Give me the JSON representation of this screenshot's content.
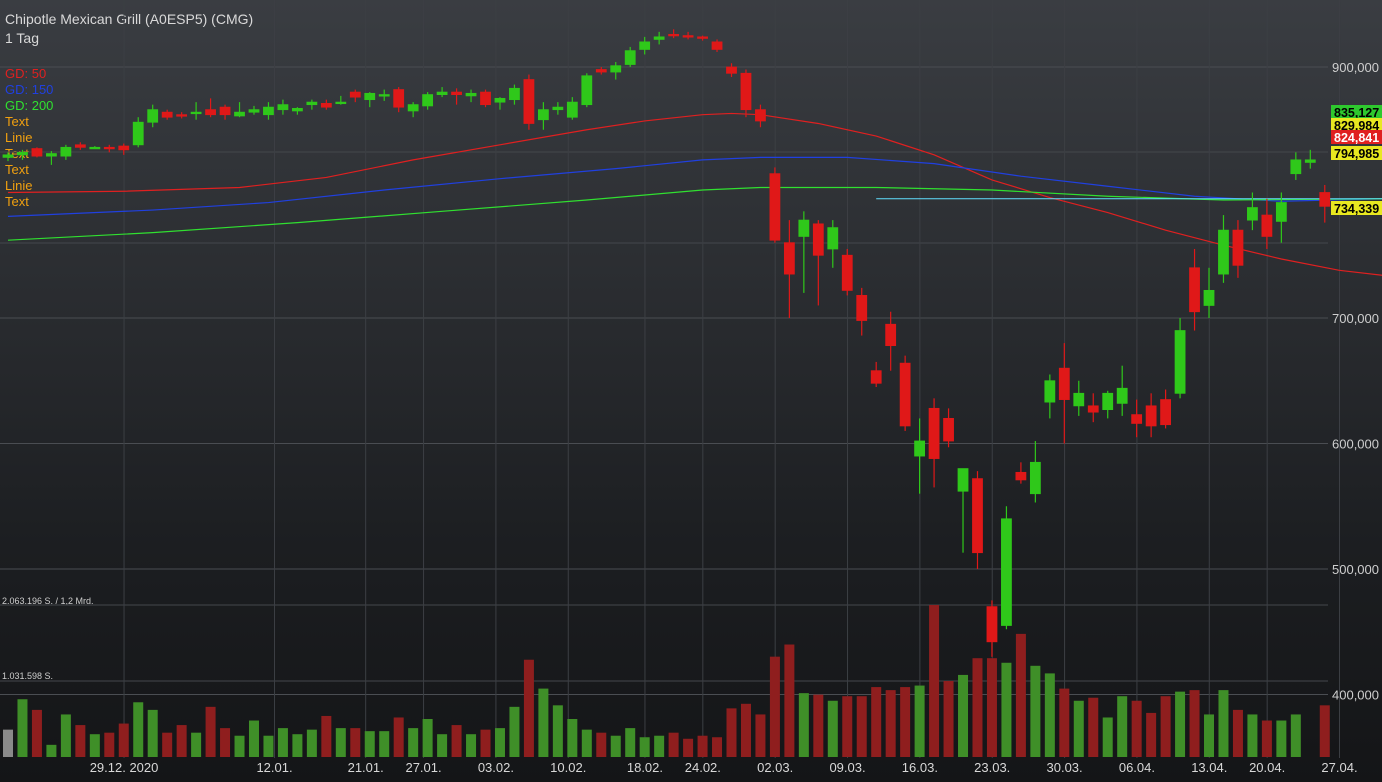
{
  "header": {
    "title": "Chipotle Mexican Grill (A0ESP5) (CMG)",
    "interval": "1 Tag"
  },
  "legend": [
    {
      "label": "GD: 50",
      "color": "#e02020"
    },
    {
      "label": "GD: 150",
      "color": "#2040e0"
    },
    {
      "label": "GD: 200",
      "color": "#30e030"
    },
    {
      "label": "Text",
      "color": "#f0a010"
    },
    {
      "label": "Linie",
      "color": "#f0a010"
    },
    {
      "label": "Text",
      "color": "#f0a010"
    },
    {
      "label": "Text",
      "color": "#f0a010"
    },
    {
      "label": "Linie",
      "color": "#f0a010"
    },
    {
      "label": "Text",
      "color": "#f0a010"
    }
  ],
  "volume_labels": {
    "max": "2.063.196 S. / 1,2 Mrd.",
    "mid": "1.031.598 S."
  },
  "chart_data": {
    "type": "candlestick",
    "title": "Chipotle Mexican Grill (A0ESP5) (CMG)",
    "interval": "1 Tag",
    "y_ticks": [
      400000,
      500000,
      600000,
      700000,
      900000
    ],
    "y_tick_labels": [
      "400,000",
      "500,000",
      "600,000",
      "700,000",
      "900,000"
    ],
    "x_ticks": [
      "29.12. 2020",
      "12.01.",
      "21.01.",
      "27.01.",
      "03.02.",
      "10.02.",
      "18.02.",
      "24.02.",
      "02.03.",
      "09.03.",
      "16.03.",
      "23.03.",
      "30.03.",
      "06.04.",
      "13.04.",
      "20.04.",
      "27.04."
    ],
    "price_tags": [
      {
        "label": "835,127",
        "bg": "#2ec82e",
        "fg": "#000000"
      },
      {
        "label": "829,984",
        "bg": "#e8e820",
        "fg": "#000000"
      },
      {
        "label": "824,841",
        "bg": "#e02020",
        "fg": "#ffffff"
      },
      {
        "label": "794,985",
        "bg": "#e8e820",
        "fg": "#000000"
      },
      {
        "label": "734,339",
        "bg": "#e8e820",
        "fg": "#000000"
      }
    ],
    "candles": [
      {
        "o": 828,
        "h": 832,
        "l": 825,
        "c": 830,
        "v": 0.18
      },
      {
        "o": 830,
        "h": 834,
        "l": 826,
        "c": 832,
        "v": 0.38
      },
      {
        "o": 835,
        "h": 836,
        "l": 828,
        "c": 829,
        "v": 0.31
      },
      {
        "o": 829,
        "h": 833,
        "l": 822,
        "c": 831,
        "v": 0.08
      },
      {
        "o": 829,
        "h": 838,
        "l": 826,
        "c": 836,
        "v": 0.28
      },
      {
        "o": 838,
        "h": 840,
        "l": 834,
        "c": 836,
        "v": 0.21
      },
      {
        "o": 836,
        "h": 837,
        "l": 835,
        "c": 836,
        "v": 0.15
      },
      {
        "o": 836,
        "h": 838,
        "l": 832,
        "c": 835,
        "v": 0.16
      },
      {
        "o": 837,
        "h": 839,
        "l": 830,
        "c": 834,
        "v": 0.22
      },
      {
        "o": 838,
        "h": 860,
        "l": 836,
        "c": 856,
        "v": 0.36
      },
      {
        "o": 856,
        "h": 870,
        "l": 852,
        "c": 866,
        "v": 0.31
      },
      {
        "o": 864,
        "h": 866,
        "l": 858,
        "c": 860,
        "v": 0.16
      },
      {
        "o": 862,
        "h": 864,
        "l": 859,
        "c": 861,
        "v": 0.21
      },
      {
        "o": 863,
        "h": 872,
        "l": 858,
        "c": 864,
        "v": 0.16
      },
      {
        "o": 866,
        "h": 875,
        "l": 860,
        "c": 862,
        "v": 0.33
      },
      {
        "o": 868,
        "h": 870,
        "l": 858,
        "c": 862,
        "v": 0.19
      },
      {
        "o": 861,
        "h": 872,
        "l": 860,
        "c": 864,
        "v": 0.14
      },
      {
        "o": 864,
        "h": 869,
        "l": 862,
        "c": 866,
        "v": 0.24
      },
      {
        "o": 862,
        "h": 872,
        "l": 858,
        "c": 868,
        "v": 0.14
      },
      {
        "o": 866,
        "h": 874,
        "l": 862,
        "c": 870,
        "v": 0.19
      },
      {
        "o": 865,
        "h": 868,
        "l": 862,
        "c": 867,
        "v": 0.15
      },
      {
        "o": 870,
        "h": 874,
        "l": 866,
        "c": 872,
        "v": 0.18
      },
      {
        "o": 871,
        "h": 874,
        "l": 866,
        "c": 868,
        "v": 0.27
      },
      {
        "o": 872,
        "h": 877,
        "l": 870,
        "c": 872,
        "v": 0.19
      },
      {
        "o": 880,
        "h": 882,
        "l": 872,
        "c": 876,
        "v": 0.19
      },
      {
        "o": 874,
        "h": 880,
        "l": 868,
        "c": 879,
        "v": 0.17
      },
      {
        "o": 878,
        "h": 882,
        "l": 873,
        "c": 878,
        "v": 0.17
      },
      {
        "o": 882,
        "h": 884,
        "l": 864,
        "c": 868,
        "v": 0.26
      },
      {
        "o": 865,
        "h": 872,
        "l": 860,
        "c": 870,
        "v": 0.19
      },
      {
        "o": 869,
        "h": 880,
        "l": 866,
        "c": 878,
        "v": 0.25
      },
      {
        "o": 878,
        "h": 884,
        "l": 876,
        "c": 880,
        "v": 0.15
      },
      {
        "o": 880,
        "h": 883,
        "l": 870,
        "c": 878,
        "v": 0.21
      },
      {
        "o": 877,
        "h": 882,
        "l": 872,
        "c": 879,
        "v": 0.15
      },
      {
        "o": 880,
        "h": 882,
        "l": 868,
        "c": 870,
        "v": 0.18
      },
      {
        "o": 872,
        "h": 876,
        "l": 866,
        "c": 875,
        "v": 0.19
      },
      {
        "o": 874,
        "h": 886,
        "l": 870,
        "c": 883,
        "v": 0.33
      },
      {
        "o": 890,
        "h": 894,
        "l": 850,
        "c": 855,
        "v": 0.64
      },
      {
        "o": 858,
        "h": 872,
        "l": 850,
        "c": 866,
        "v": 0.45
      },
      {
        "o": 866,
        "h": 872,
        "l": 862,
        "c": 868,
        "v": 0.34
      },
      {
        "o": 860,
        "h": 876,
        "l": 858,
        "c": 872,
        "v": 0.25
      },
      {
        "o": 870,
        "h": 895,
        "l": 868,
        "c": 893,
        "v": 0.18
      },
      {
        "o": 898,
        "h": 900,
        "l": 894,
        "c": 896,
        "v": 0.16
      },
      {
        "o": 896,
        "h": 904,
        "l": 890,
        "c": 901,
        "v": 0.14
      },
      {
        "o": 902,
        "h": 916,
        "l": 900,
        "c": 913,
        "v": 0.19
      },
      {
        "o": 914,
        "h": 924,
        "l": 910,
        "c": 920,
        "v": 0.13
      },
      {
        "o": 922,
        "h": 928,
        "l": 918,
        "c": 924,
        "v": 0.14
      },
      {
        "o": 926,
        "h": 930,
        "l": 923,
        "c": 925,
        "v": 0.16
      },
      {
        "o": 925,
        "h": 928,
        "l": 922,
        "c": 924,
        "v": 0.12
      },
      {
        "o": 924,
        "h": 925,
        "l": 921,
        "c": 923,
        "v": 0.14
      },
      {
        "o": 920,
        "h": 922,
        "l": 912,
        "c": 914,
        "v": 0.13
      },
      {
        "o": 900,
        "h": 903,
        "l": 892,
        "c": 895,
        "v": 0.32
      },
      {
        "o": 895,
        "h": 898,
        "l": 860,
        "c": 866,
        "v": 0.35
      },
      {
        "o": 866,
        "h": 870,
        "l": 852,
        "c": 857,
        "v": 0.28
      },
      {
        "o": 815,
        "h": 820,
        "l": 760,
        "c": 762,
        "v": 0.66
      },
      {
        "o": 760,
        "h": 778,
        "l": 700,
        "c": 735,
        "v": 0.74
      },
      {
        "o": 765,
        "h": 785,
        "l": 720,
        "c": 778,
        "v": 0.42
      },
      {
        "o": 775,
        "h": 778,
        "l": 710,
        "c": 750,
        "v": 0.41
      },
      {
        "o": 755,
        "h": 778,
        "l": 740,
        "c": 772,
        "v": 0.37
      },
      {
        "o": 750,
        "h": 755,
        "l": 718,
        "c": 722,
        "v": 0.4
      },
      {
        "o": 718,
        "h": 724,
        "l": 686,
        "c": 698,
        "v": 0.4
      },
      {
        "o": 658,
        "h": 665,
        "l": 645,
        "c": 648,
        "v": 0.46
      },
      {
        "o": 695,
        "h": 705,
        "l": 658,
        "c": 678,
        "v": 0.44
      },
      {
        "o": 664,
        "h": 670,
        "l": 610,
        "c": 614,
        "v": 0.46
      },
      {
        "o": 590,
        "h": 620,
        "l": 560,
        "c": 602,
        "v": 0.47
      },
      {
        "o": 628,
        "h": 636,
        "l": 565,
        "c": 588,
        "v": 1.0
      },
      {
        "o": 620,
        "h": 628,
        "l": 597,
        "c": 602,
        "v": 0.5
      },
      {
        "o": 562,
        "h": 580,
        "l": 513,
        "c": 580,
        "v": 0.54
      },
      {
        "o": 572,
        "h": 578,
        "l": 500,
        "c": 513,
        "v": 0.65
      },
      {
        "o": 470,
        "h": 475,
        "l": 430,
        "c": 442,
        "v": 0.65
      },
      {
        "o": 455,
        "h": 550,
        "l": 452,
        "c": 540,
        "v": 0.62
      },
      {
        "o": 577,
        "h": 585,
        "l": 568,
        "c": 571,
        "v": 0.81
      },
      {
        "o": 560,
        "h": 602,
        "l": 553,
        "c": 585,
        "v": 0.6
      },
      {
        "o": 633,
        "h": 655,
        "l": 620,
        "c": 650,
        "v": 0.55
      },
      {
        "o": 660,
        "h": 680,
        "l": 600,
        "c": 635,
        "v": 0.45
      },
      {
        "o": 630,
        "h": 650,
        "l": 622,
        "c": 640,
        "v": 0.37
      },
      {
        "o": 630,
        "h": 640,
        "l": 617,
        "c": 625,
        "v": 0.39
      },
      {
        "o": 627,
        "h": 642,
        "l": 620,
        "c": 640,
        "v": 0.26
      },
      {
        "o": 632,
        "h": 662,
        "l": 622,
        "c": 644,
        "v": 0.4
      },
      {
        "o": 623,
        "h": 635,
        "l": 605,
        "c": 616,
        "v": 0.37
      },
      {
        "o": 630,
        "h": 640,
        "l": 605,
        "c": 614,
        "v": 0.29
      },
      {
        "o": 635,
        "h": 643,
        "l": 612,
        "c": 615,
        "v": 0.4
      },
      {
        "o": 640,
        "h": 700,
        "l": 636,
        "c": 690,
        "v": 0.43
      },
      {
        "o": 740,
        "h": 755,
        "l": 690,
        "c": 705,
        "v": 0.44
      },
      {
        "o": 710,
        "h": 740,
        "l": 700,
        "c": 722,
        "v": 0.28
      },
      {
        "o": 735,
        "h": 782,
        "l": 728,
        "c": 770,
        "v": 0.44
      },
      {
        "o": 770,
        "h": 778,
        "l": 732,
        "c": 742,
        "v": 0.31
      },
      {
        "o": 778,
        "h": 800,
        "l": 770,
        "c": 788,
        "v": 0.28
      },
      {
        "o": 782,
        "h": 795,
        "l": 755,
        "c": 765,
        "v": 0.24
      },
      {
        "o": 777,
        "h": 800,
        "l": 760,
        "c": 792,
        "v": 0.24
      },
      {
        "o": 815,
        "h": 832,
        "l": 810,
        "c": 826,
        "v": 0.28
      },
      {
        "o": 824,
        "h": 834,
        "l": 819,
        "c": 826,
        "v": 0.0
      },
      {
        "o": 800,
        "h": 806,
        "l": 776,
        "c": 789,
        "v": 0.34
      }
    ],
    "moving_averages": [
      {
        "name": "GD: 50",
        "color": "#e02020",
        "points": [
          [
            0,
            800
          ],
          [
            8,
            801
          ],
          [
            16,
            804
          ],
          [
            22,
            812
          ],
          [
            28,
            826
          ],
          [
            34,
            838
          ],
          [
            40,
            850
          ],
          [
            44,
            857
          ],
          [
            48,
            862
          ],
          [
            50,
            863
          ],
          [
            52,
            862
          ],
          [
            56,
            855
          ],
          [
            60,
            845
          ],
          [
            64,
            830
          ],
          [
            68,
            810
          ],
          [
            72,
            796
          ],
          [
            76,
            784
          ],
          [
            80,
            770
          ],
          [
            84,
            758
          ],
          [
            88,
            747
          ],
          [
            92,
            738
          ],
          [
            95,
            734
          ]
        ]
      },
      {
        "name": "GD: 150",
        "color": "#2040e0",
        "points": [
          [
            0,
            781
          ],
          [
            10,
            786
          ],
          [
            18,
            792
          ],
          [
            26,
            802
          ],
          [
            34,
            811
          ],
          [
            42,
            819
          ],
          [
            48,
            826
          ],
          [
            52,
            828
          ],
          [
            58,
            828
          ],
          [
            64,
            823
          ],
          [
            70,
            813
          ],
          [
            76,
            805
          ],
          [
            82,
            797
          ],
          [
            88,
            793
          ],
          [
            95,
            795
          ]
        ]
      },
      {
        "name": "GD: 200",
        "color": "#30e030",
        "points": [
          [
            0,
            762
          ],
          [
            10,
            768
          ],
          [
            20,
            776
          ],
          [
            30,
            785
          ],
          [
            40,
            794
          ],
          [
            48,
            802
          ],
          [
            52,
            804
          ],
          [
            60,
            804
          ],
          [
            68,
            802
          ],
          [
            76,
            797
          ],
          [
            84,
            794
          ],
          [
            95,
            795
          ]
        ]
      }
    ],
    "horizontal_lines": [
      {
        "value": 794.985,
        "color": "#60e0ff"
      }
    ]
  }
}
